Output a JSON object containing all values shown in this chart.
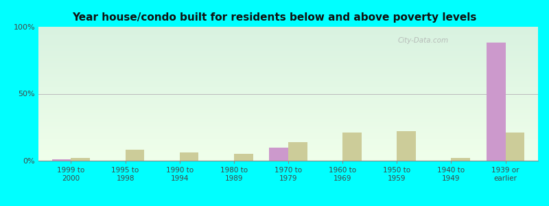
{
  "title": "Year house/condo built for residents below and above poverty levels",
  "categories": [
    "1999 to\n2000",
    "1995 to\n1998",
    "1990 to\n1994",
    "1980 to\n1989",
    "1970 to\n1979",
    "1960 to\n1969",
    "1950 to\n1959",
    "1940 to\n1949",
    "1939 or\nearlier"
  ],
  "below_poverty": [
    1,
    0,
    0,
    0,
    10,
    0,
    0,
    0,
    88
  ],
  "above_poverty": [
    2,
    8,
    6,
    5,
    14,
    21,
    22,
    2,
    21
  ],
  "below_color": "#cc99cc",
  "above_color": "#cccc99",
  "background_color": "#00ffff",
  "yticks": [
    0,
    50,
    100
  ],
  "ylim": [
    0,
    100
  ],
  "bar_width": 0.35,
  "gradient_top": "#d4ede0",
  "gradient_bottom": "#eef8e8",
  "watermark": "City-Data.com"
}
